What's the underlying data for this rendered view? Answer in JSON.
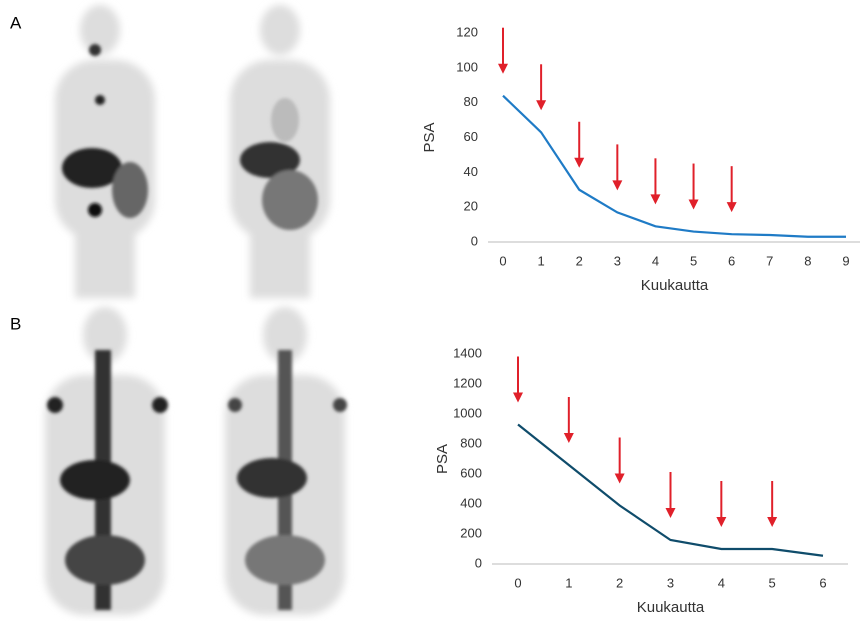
{
  "panels": [
    "A",
    "B"
  ],
  "chart_data": [
    {
      "type": "line",
      "x_label": "Kuukautta",
      "y_label": "PSA",
      "x": [
        0,
        1,
        2,
        3,
        4,
        5,
        6,
        7,
        8,
        9
      ],
      "series": [
        {
          "color": "#1f7bc6",
          "values": [
            84,
            63,
            30,
            17,
            9,
            6,
            4.5,
            4,
            3,
            3
          ]
        }
      ],
      "xlim": [
        0,
        9
      ],
      "xticks": [
        0,
        1,
        2,
        3,
        4,
        5,
        6,
        7,
        8,
        9
      ],
      "ylim": [
        0,
        120
      ],
      "yticks": [
        0,
        20,
        40,
        60,
        80,
        100,
        120
      ],
      "arrows_x": [
        0,
        1,
        2,
        3,
        4,
        5,
        6
      ],
      "arrow_color": "#e0202a",
      "grid": false
    },
    {
      "type": "line",
      "x_label": "Kuukautta",
      "y_label": "PSA",
      "x": [
        0,
        1,
        2,
        3,
        4,
        5,
        6
      ],
      "series": [
        {
          "color": "#0f4c6b",
          "values": [
            930,
            660,
            390,
            160,
            100,
            100,
            55
          ]
        }
      ],
      "xlim": [
        0,
        6
      ],
      "xticks": [
        0,
        1,
        2,
        3,
        4,
        5,
        6
      ],
      "ylim": [
        0,
        1400
      ],
      "yticks": [
        0,
        200,
        400,
        600,
        800,
        1000,
        1200,
        1400
      ],
      "arrows_x": [
        0,
        1,
        2,
        3,
        4,
        5
      ],
      "arrow_color": "#e0202a",
      "grid": false
    }
  ]
}
